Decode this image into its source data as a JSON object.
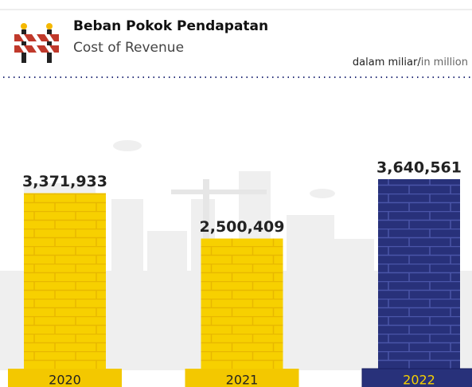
{
  "chart_data": {
    "type": "bar",
    "title": "Beban Pokok Pendapatan",
    "subtitle": "Cost of Revenue",
    "unit": {
      "local": "dalam miliar",
      "separator": "/",
      "english": "in million"
    },
    "categories": [
      "2020",
      "2021",
      "2022"
    ],
    "values": [
      3371933,
      2500409,
      3640561
    ],
    "value_labels": [
      "3,371,933",
      "2,500,409",
      "3,640,561"
    ],
    "colors": [
      "#f7d000",
      "#f7d000",
      "#28317a"
    ]
  }
}
